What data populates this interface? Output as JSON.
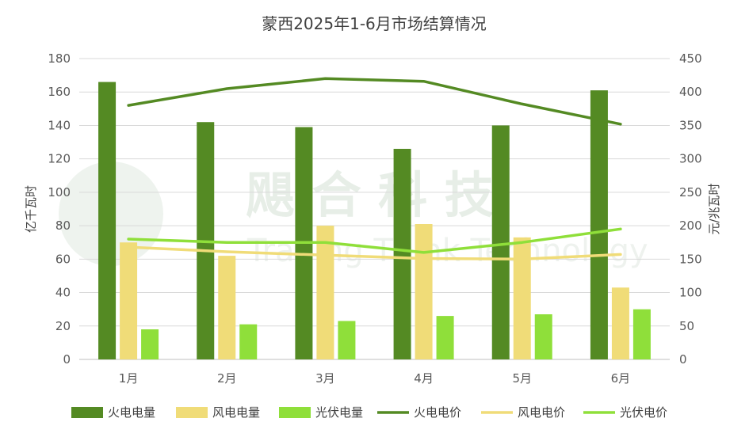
{
  "chart_data": {
    "type": "bar",
    "title": "蒙西2025年1-6月市场结算情况",
    "categories": [
      "1月",
      "2月",
      "3月",
      "4月",
      "5月",
      "6月"
    ],
    "ylabel_left": "亿千瓦时",
    "ylabel_right": "元/兆瓦时",
    "ylim_left": [
      0,
      180
    ],
    "yticks_left": [
      0,
      20,
      40,
      60,
      80,
      100,
      120,
      140,
      160,
      180
    ],
    "ylim_right": [
      0,
      450
    ],
    "yticks_right": [
      0,
      50,
      100,
      150,
      200,
      250,
      300,
      350,
      400,
      450
    ],
    "grid": true,
    "legend_position": "bottom",
    "bar_series": [
      {
        "name": "火电电量",
        "color": "#548a23",
        "values": [
          166,
          142,
          139,
          126,
          140,
          161
        ]
      },
      {
        "name": "风电电量",
        "color": "#f0dc78",
        "values": [
          70,
          62,
          80,
          81,
          73,
          43
        ]
      },
      {
        "name": "光伏电量",
        "color": "#8fdf3a",
        "values": [
          18,
          21,
          23,
          26,
          27,
          30
        ]
      }
    ],
    "line_series": [
      {
        "name": "火电电价",
        "color": "#548a23",
        "values": [
          380,
          405,
          420,
          416,
          382,
          352
        ]
      },
      {
        "name": "风电电价",
        "color": "#f0dc78",
        "values": [
          168,
          161,
          156,
          151,
          150,
          157
        ]
      },
      {
        "name": "光伏电价",
        "color": "#8fdf3a",
        "values": [
          180,
          175,
          175,
          160,
          175,
          195
        ]
      }
    ]
  },
  "watermark": {
    "text_cn": "飓 合 科 技",
    "text_en": "Trading Think Technology"
  }
}
